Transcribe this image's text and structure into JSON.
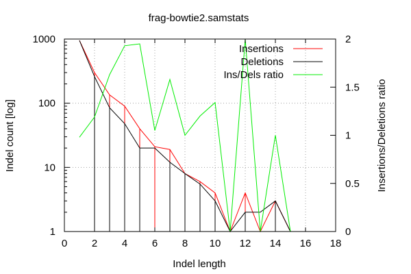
{
  "chart_data": {
    "type": "line",
    "title": "frag-bowtie2.samstats",
    "xlabel": "Indel length",
    "ylabel": "Indel count [log]",
    "y2label": "Insertions/Deletions ratio",
    "xlim": [
      0,
      18
    ],
    "ylim": [
      1,
      1000
    ],
    "y2lim": [
      0,
      2
    ],
    "yscale": "log",
    "grid": true,
    "legend_position": "top-right",
    "x_ticks": [
      "0",
      "2",
      "4",
      "6",
      "8",
      "10",
      "12",
      "14",
      "16",
      "18"
    ],
    "y_ticks": [
      "1",
      "10",
      "100",
      "1000"
    ],
    "y2_ticks": [
      "0",
      "0.5",
      "1",
      "1.5",
      "2"
    ],
    "series": [
      {
        "name": "Insertions",
        "color": "#ff0000",
        "axis": "left",
        "style": "steps-line",
        "x": [
          1,
          2,
          3,
          4,
          5,
          6,
          7,
          8,
          9,
          10,
          11,
          12,
          13,
          14,
          15
        ],
        "y": [
          950,
          300,
          135,
          90,
          40,
          21,
          19,
          8,
          6,
          4,
          1,
          4,
          1,
          3,
          1
        ]
      },
      {
        "name": "Deletions",
        "color": "#000000",
        "axis": "left",
        "style": "steps-line",
        "x": [
          1,
          2,
          3,
          4,
          5,
          6,
          7,
          8,
          9,
          10,
          11,
          12,
          13,
          14,
          15
        ],
        "y": [
          950,
          260,
          85,
          48,
          20,
          20,
          12,
          8,
          5.5,
          3,
          1,
          2,
          2,
          3,
          1
        ]
      },
      {
        "name": "Ins/Dels ratio",
        "color": "#00ee00",
        "axis": "right",
        "style": "line",
        "x": [
          1,
          2,
          3,
          4,
          5,
          6,
          7,
          8,
          9,
          10,
          11,
          12,
          13,
          14,
          15
        ],
        "y": [
          0.98,
          1.19,
          1.63,
          1.93,
          1.95,
          1.05,
          1.58,
          1.0,
          1.2,
          1.34,
          0,
          2.0,
          0,
          1.0,
          0
        ]
      }
    ]
  }
}
